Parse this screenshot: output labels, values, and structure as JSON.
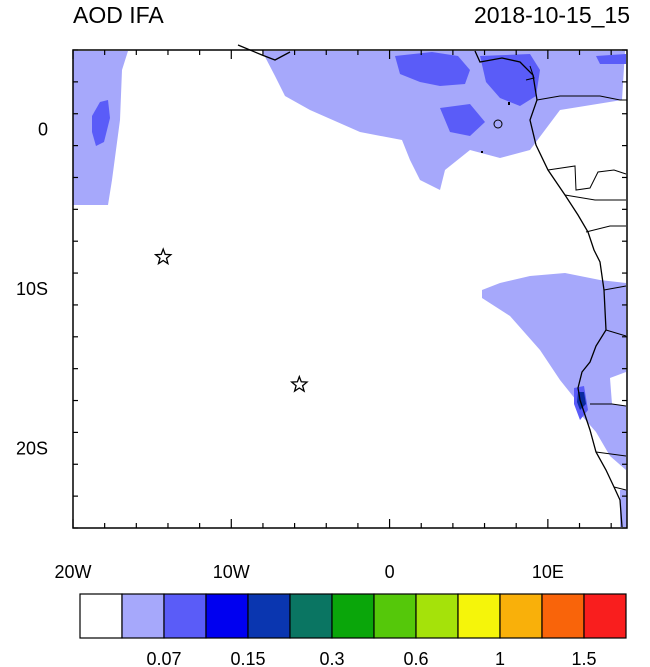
{
  "map": {
    "title": "AOD IFA",
    "timestamp": "2018-10-15_15",
    "lon_ticks": [
      {
        "label": "20W",
        "value": -20
      },
      {
        "label": "10W",
        "value": -10
      },
      {
        "label": "0",
        "value": 0
      },
      {
        "label": "10E",
        "value": 10
      }
    ],
    "lat_ticks": [
      {
        "label": "0",
        "value": 0
      },
      {
        "label": "10S",
        "value": -10
      },
      {
        "label": "20S",
        "value": -20
      }
    ],
    "lon_range": [
      -20,
      15
    ],
    "lat_range": [
      -25,
      5
    ],
    "markers": [
      {
        "symbol": "star",
        "lon": -14.3,
        "lat": -8.0
      },
      {
        "symbol": "star",
        "lon": -5.7,
        "lat": -16.0
      }
    ]
  },
  "colorbar": {
    "colors": [
      "#ffffff",
      "#a6a8fb",
      "#5a5cf8",
      "#0000f0",
      "#0a36b0",
      "#0a7562",
      "#0aa60a",
      "#55c80a",
      "#a5e20a",
      "#f5f50a",
      "#f9b00a",
      "#f9640a",
      "#f91e1e"
    ],
    "tick_labels": [
      "0.07",
      "0.15",
      "0.3",
      "0.6",
      "1",
      "1.5"
    ]
  }
}
